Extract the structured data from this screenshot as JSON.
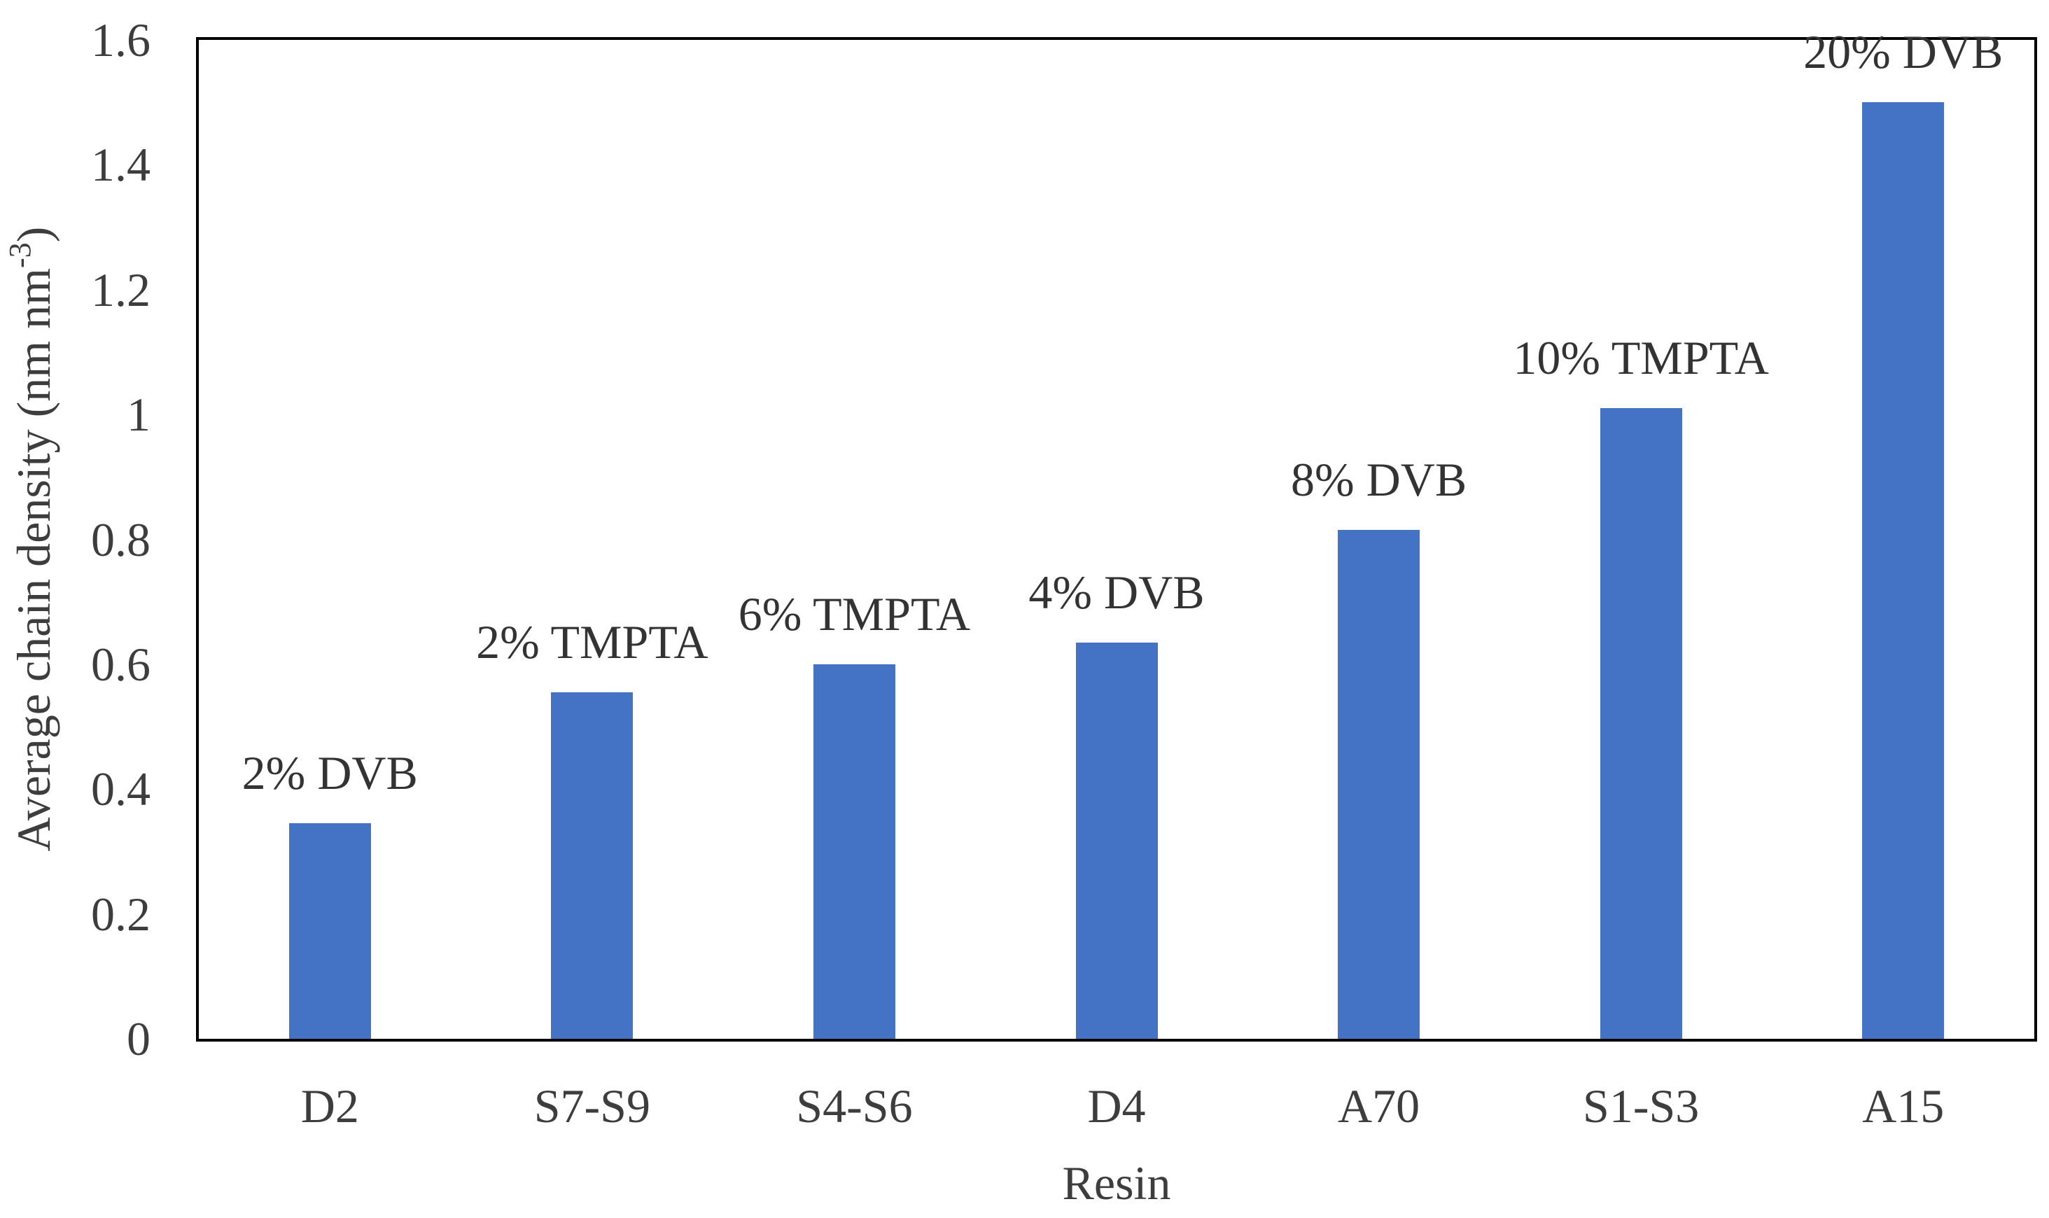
{
  "chart_data": {
    "type": "bar",
    "categories": [
      "D2",
      "S7-S9",
      "S4-S6",
      "D4",
      "A70",
      "S1-S3",
      "A15"
    ],
    "values": [
      0.345,
      0.555,
      0.6,
      0.635,
      0.815,
      1.01,
      1.5
    ],
    "bar_labels": [
      "2% DVB",
      "2% TMPTA",
      "6% TMPTA",
      "4% DVB",
      "8% DVB",
      "10% TMPTA",
      "20% DVB"
    ],
    "title": "",
    "xlabel": "Resin",
    "ylabel": "Average chain density (nm nm⁻³)",
    "ylabel_parts": {
      "prefix": "Average chain density (nm nm",
      "superscript": "-3",
      "suffix": ")"
    },
    "ylim": [
      0,
      1.6
    ],
    "ytick_step": 0.2,
    "ytick_labels": [
      "0",
      "0.2",
      "0.4",
      "0.6",
      "0.8",
      "1",
      "1.2",
      "1.4",
      "1.6"
    ],
    "grid": false,
    "legend": false,
    "bar_color": "#4472C4",
    "text_color": "#3d3d3d",
    "axis_color": "#000000",
    "background_color": "#ffffff"
  }
}
